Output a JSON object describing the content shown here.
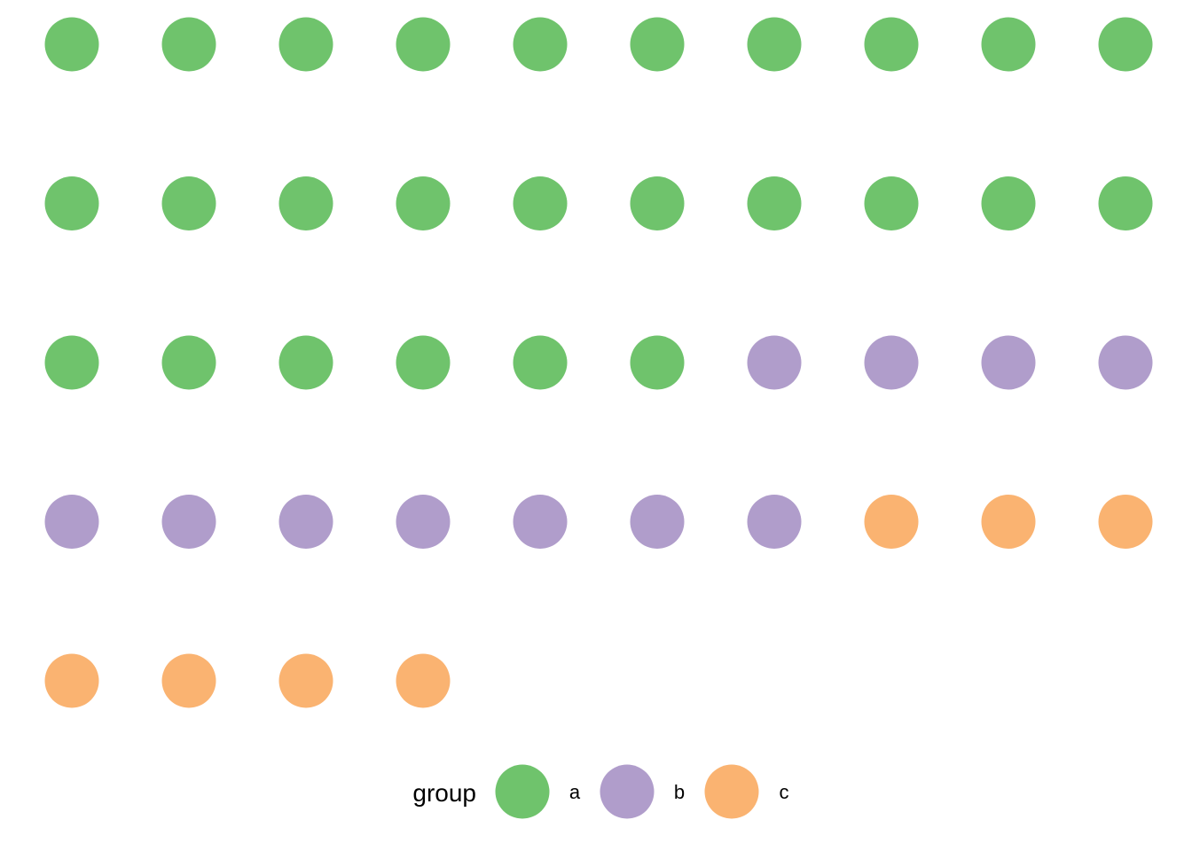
{
  "chart_data": {
    "type": "waffle",
    "title": "",
    "columns": 10,
    "categories": [
      "a",
      "b",
      "c"
    ],
    "values": [
      26,
      11,
      7
    ],
    "colors": {
      "a": "#6FC36C",
      "b": "#B09DCB",
      "c": "#FAB371"
    },
    "legend": {
      "title": "group",
      "position": "bottom",
      "entries": [
        {
          "label": "a",
          "color": "#6FC36C"
        },
        {
          "label": "b",
          "color": "#B09DCB"
        },
        {
          "label": "c",
          "color": "#FAB371"
        }
      ]
    }
  }
}
